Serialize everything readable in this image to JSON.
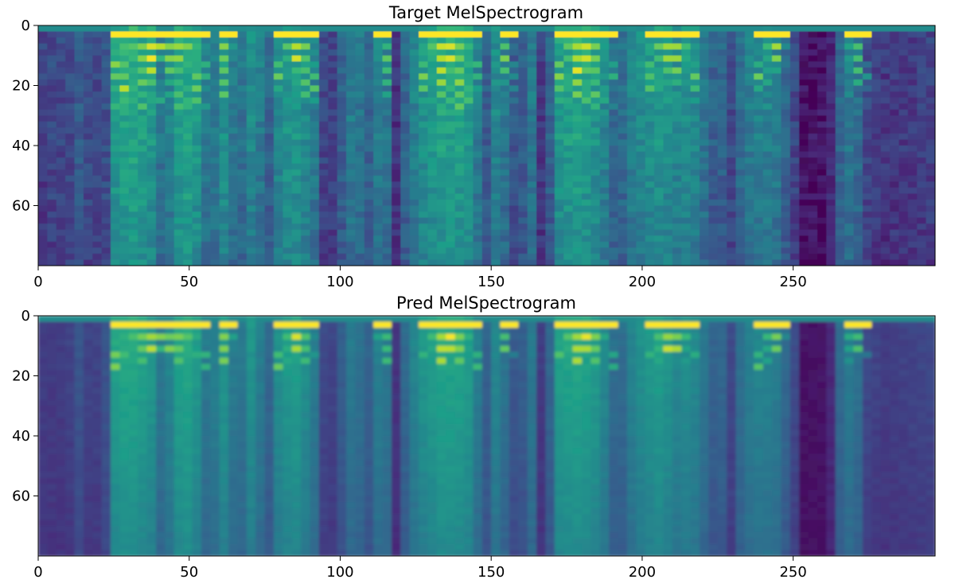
{
  "chart_data": [
    {
      "type": "heatmap",
      "title": "Target MelSpectrogram",
      "xlabel": "",
      "ylabel": "",
      "xlim": [
        0,
        297
      ],
      "ylim": [
        80,
        0
      ],
      "xticks": [
        0,
        50,
        100,
        150,
        200,
        250
      ],
      "yticks": [
        0,
        20,
        40,
        60
      ],
      "colormap": "viridis",
      "grid": false,
      "frames": 297,
      "mel_bins": 80,
      "column_energy": [
        [
          0,
          0.18
        ],
        [
          4,
          0.22
        ],
        [
          10,
          0.22
        ],
        [
          14,
          0.3
        ],
        [
          16,
          0.24
        ],
        [
          22,
          0.2
        ],
        [
          25,
          0.55
        ],
        [
          30,
          0.62
        ],
        [
          38,
          0.55
        ],
        [
          42,
          0.32
        ],
        [
          44,
          0.5
        ],
        [
          48,
          0.62
        ],
        [
          52,
          0.58
        ],
        [
          56,
          0.4
        ],
        [
          57,
          0.05
        ],
        [
          59,
          0.55
        ],
        [
          63,
          0.5
        ],
        [
          66,
          0.32
        ],
        [
          70,
          0.5
        ],
        [
          74,
          0.42
        ],
        [
          76,
          0.3
        ],
        [
          80,
          0.52
        ],
        [
          86,
          0.55
        ],
        [
          92,
          0.42
        ],
        [
          94,
          0.22
        ],
        [
          98,
          0.2
        ],
        [
          100,
          0.3
        ],
        [
          104,
          0.45
        ],
        [
          110,
          0.32
        ],
        [
          113,
          0.45
        ],
        [
          117,
          0.38
        ],
        [
          119,
          0.08
        ],
        [
          121,
          0.32
        ],
        [
          126,
          0.5
        ],
        [
          134,
          0.6
        ],
        [
          142,
          0.58
        ],
        [
          146,
          0.42
        ],
        [
          148,
          0.28
        ],
        [
          152,
          0.5
        ],
        [
          155,
          0.38
        ],
        [
          159,
          0.22
        ],
        [
          163,
          0.44
        ],
        [
          166,
          0.3
        ],
        [
          167,
          0.05
        ],
        [
          169,
          0.28
        ],
        [
          172,
          0.55
        ],
        [
          178,
          0.6
        ],
        [
          184,
          0.55
        ],
        [
          190,
          0.42
        ],
        [
          192,
          0.18
        ],
        [
          194,
          0.42
        ],
        [
          200,
          0.5
        ],
        [
          206,
          0.55
        ],
        [
          212,
          0.48
        ],
        [
          216,
          0.52
        ],
        [
          220,
          0.42
        ],
        [
          224,
          0.3
        ],
        [
          228,
          0.35
        ],
        [
          230,
          0.2
        ],
        [
          233,
          0.4
        ],
        [
          238,
          0.46
        ],
        [
          244,
          0.45
        ],
        [
          250,
          0.25
        ],
        [
          253,
          0.05
        ],
        [
          262,
          0.06
        ],
        [
          264,
          0.3
        ],
        [
          268,
          0.42
        ],
        [
          272,
          0.36
        ],
        [
          274,
          0.22
        ],
        [
          280,
          0.16
        ],
        [
          290,
          0.18
        ],
        [
          297,
          0.2
        ]
      ],
      "harmonic_segments": [
        [
          25,
          56,
          6
        ],
        [
          59,
          66,
          6
        ],
        [
          79,
          93,
          5
        ],
        [
          111,
          118,
          6
        ],
        [
          126,
          146,
          6
        ],
        [
          152,
          158,
          7
        ],
        [
          171,
          191,
          6
        ],
        [
          201,
          219,
          6
        ],
        [
          238,
          250,
          6
        ],
        [
          266,
          275,
          5
        ]
      ]
    },
    {
      "type": "heatmap",
      "title": "Pred MelSpectrogram",
      "xlabel": "",
      "ylabel": "",
      "xlim": [
        0,
        297
      ],
      "ylim": [
        80,
        0
      ],
      "xticks": [
        0,
        50,
        100,
        150,
        200,
        250
      ],
      "yticks": [
        0,
        20,
        40,
        60
      ],
      "colormap": "viridis",
      "grid": false,
      "frames": 297,
      "mel_bins": 80,
      "column_energy": [
        [
          0,
          0.18
        ],
        [
          10,
          0.18
        ],
        [
          13,
          0.28
        ],
        [
          15,
          0.2
        ],
        [
          22,
          0.2
        ],
        [
          25,
          0.55
        ],
        [
          30,
          0.6
        ],
        [
          38,
          0.52
        ],
        [
          42,
          0.32
        ],
        [
          44,
          0.5
        ],
        [
          48,
          0.6
        ],
        [
          52,
          0.55
        ],
        [
          56,
          0.38
        ],
        [
          57,
          0.05
        ],
        [
          59,
          0.55
        ],
        [
          63,
          0.5
        ],
        [
          66,
          0.32
        ],
        [
          70,
          0.52
        ],
        [
          74,
          0.4
        ],
        [
          76,
          0.3
        ],
        [
          80,
          0.52
        ],
        [
          86,
          0.55
        ],
        [
          92,
          0.4
        ],
        [
          94,
          0.22
        ],
        [
          98,
          0.2
        ],
        [
          100,
          0.28
        ],
        [
          104,
          0.42
        ],
        [
          110,
          0.3
        ],
        [
          113,
          0.45
        ],
        [
          117,
          0.36
        ],
        [
          119,
          0.08
        ],
        [
          121,
          0.32
        ],
        [
          126,
          0.5
        ],
        [
          134,
          0.58
        ],
        [
          142,
          0.56
        ],
        [
          146,
          0.4
        ],
        [
          148,
          0.28
        ],
        [
          152,
          0.48
        ],
        [
          155,
          0.36
        ],
        [
          159,
          0.22
        ],
        [
          163,
          0.42
        ],
        [
          166,
          0.3
        ],
        [
          167,
          0.05
        ],
        [
          169,
          0.28
        ],
        [
          172,
          0.55
        ],
        [
          178,
          0.58
        ],
        [
          184,
          0.55
        ],
        [
          190,
          0.4
        ],
        [
          192,
          0.2
        ],
        [
          194,
          0.4
        ],
        [
          200,
          0.5
        ],
        [
          206,
          0.55
        ],
        [
          212,
          0.46
        ],
        [
          216,
          0.5
        ],
        [
          220,
          0.4
        ],
        [
          224,
          0.3
        ],
        [
          228,
          0.34
        ],
        [
          230,
          0.18
        ],
        [
          233,
          0.4
        ],
        [
          238,
          0.45
        ],
        [
          244,
          0.44
        ],
        [
          250,
          0.26
        ],
        [
          253,
          0.05
        ],
        [
          262,
          0.06
        ],
        [
          264,
          0.3
        ],
        [
          268,
          0.42
        ],
        [
          272,
          0.36
        ],
        [
          274,
          0.22
        ],
        [
          280,
          0.18
        ],
        [
          290,
          0.2
        ],
        [
          297,
          0.22
        ]
      ],
      "harmonic_segments": [
        [
          25,
          56,
          3
        ],
        [
          59,
          66,
          3
        ],
        [
          79,
          93,
          3
        ],
        [
          111,
          118,
          3
        ],
        [
          126,
          146,
          3
        ],
        [
          152,
          158,
          3
        ],
        [
          171,
          191,
          3
        ],
        [
          201,
          219,
          3
        ],
        [
          238,
          250,
          3
        ],
        [
          266,
          275,
          3
        ]
      ]
    }
  ]
}
